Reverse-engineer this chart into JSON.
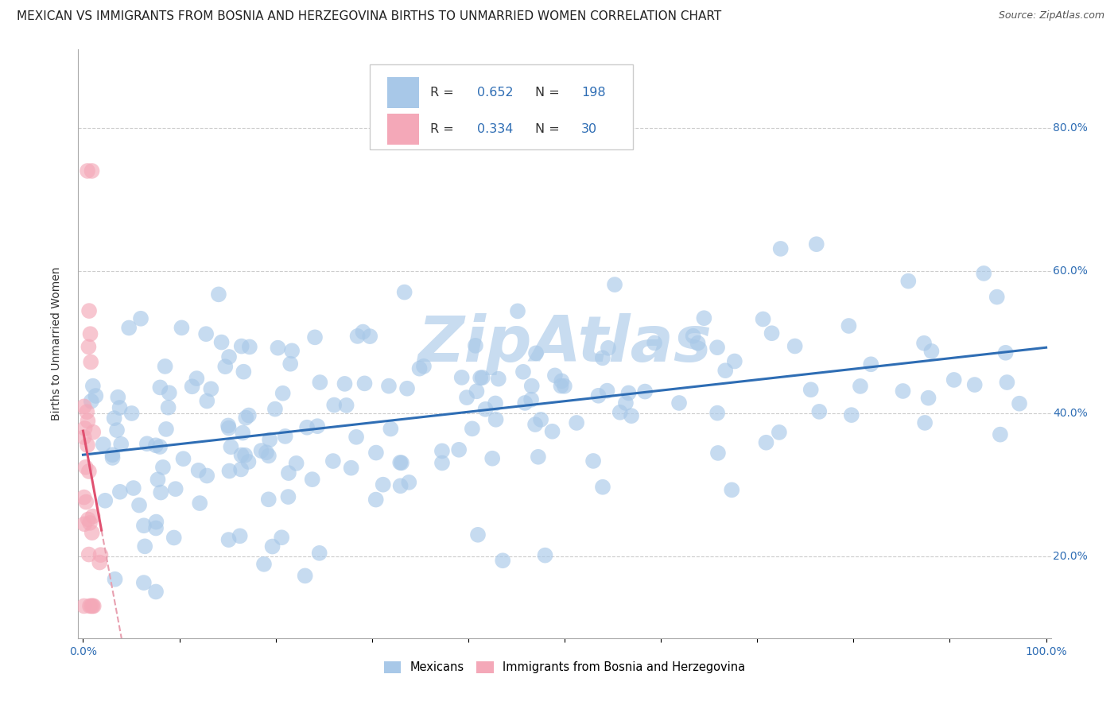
{
  "title": "MEXICAN VS IMMIGRANTS FROM BOSNIA AND HERZEGOVINA BIRTHS TO UNMARRIED WOMEN CORRELATION CHART",
  "source": "Source: ZipAtlas.com",
  "ylabel": "Births to Unmarried Women",
  "legend_label1": "Mexicans",
  "legend_label2": "Immigrants from Bosnia and Herzegovina",
  "r1": "0.652",
  "n1": "198",
  "r2": "0.334",
  "n2": "30",
  "color_blue": "#A8C8E8",
  "color_pink": "#F4A8B8",
  "color_blue_line": "#2E6DB4",
  "color_pink_line": "#E05070",
  "color_pink_dash": "#E8A0B0",
  "watermark": "ZipAtlas",
  "watermark_color": "#C8DCF0",
  "title_fontsize": 11,
  "axis_fontsize": 10,
  "tick_fontsize": 10,
  "legend_text_color": "#2E6DB4",
  "legend_label_color": "#333333"
}
